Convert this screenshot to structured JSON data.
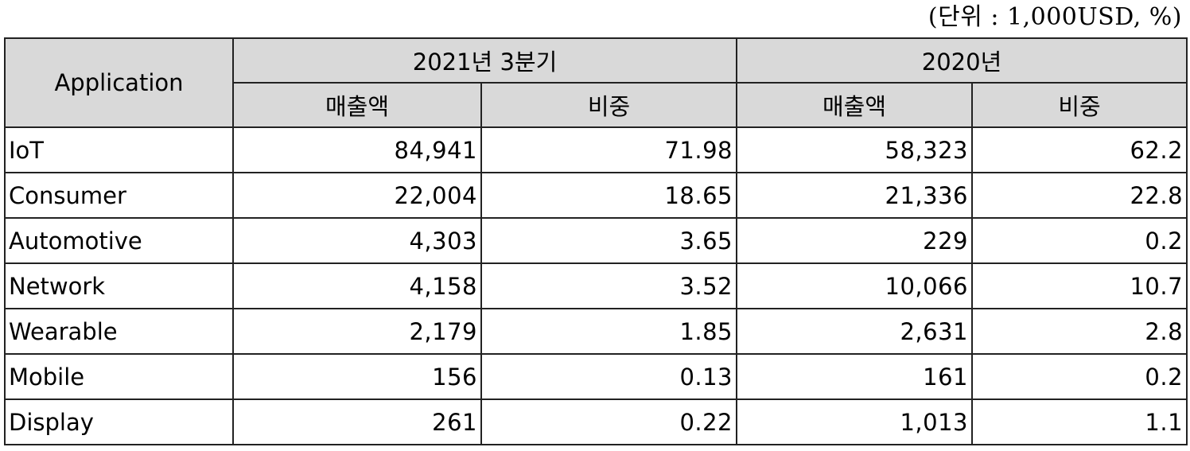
{
  "unit_note": "(단위 : 1,000USD, %)",
  "table": {
    "col_application": "Application",
    "period_1": "2021년 3분기",
    "period_2": "2020년",
    "sub_sales": "매출액",
    "sub_share": "비중",
    "rows": [
      {
        "application": "IoT",
        "sales_2021q3": "84,941",
        "share_2021q3": "71.98",
        "sales_2020": "58,323",
        "share_2020": "62.2"
      },
      {
        "application": "Consumer",
        "sales_2021q3": "22,004",
        "share_2021q3": "18.65",
        "sales_2020": "21,336",
        "share_2020": "22.8"
      },
      {
        "application": "Automotive",
        "sales_2021q3": "4,303",
        "share_2021q3": "3.65",
        "sales_2020": "229",
        "share_2020": "0.2"
      },
      {
        "application": "Network",
        "sales_2021q3": "4,158",
        "share_2021q3": "3.52",
        "sales_2020": "10,066",
        "share_2020": "10.7"
      },
      {
        "application": "Wearable",
        "sales_2021q3": "2,179",
        "share_2021q3": "1.85",
        "sales_2020": "2,631",
        "share_2020": "2.8"
      },
      {
        "application": "Mobile",
        "sales_2021q3": "156",
        "share_2021q3": "0.13",
        "sales_2020": "161",
        "share_2020": "0.2"
      },
      {
        "application": "Display",
        "sales_2021q3": "261",
        "share_2021q3": "0.22",
        "sales_2020": "1,013",
        "share_2020": "1.1"
      }
    ]
  }
}
